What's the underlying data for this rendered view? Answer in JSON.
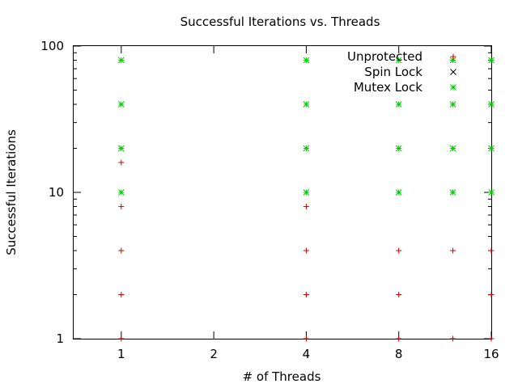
{
  "chart_data": {
    "type": "scatter",
    "title": "Successful Iterations vs. Threads",
    "xlabel": "# of Threads",
    "ylabel": "Successful Iterations",
    "x_scale": "log2",
    "y_scale": "log10",
    "xlim": [
      0.7,
      16
    ],
    "ylim": [
      1,
      100
    ],
    "x_ticks": [
      1,
      2,
      4,
      8,
      16
    ],
    "x_tick_labels": [
      "1",
      "2",
      "4",
      "8",
      "16"
    ],
    "y_ticks": [
      1,
      10,
      100
    ],
    "y_tick_labels": [
      "1",
      "10",
      "100"
    ],
    "grid": false,
    "legend_position": "top-right",
    "series": [
      {
        "name": "Unprotected",
        "marker": "plus",
        "color": "#cc0000",
        "points": [
          [
            1,
            1
          ],
          [
            1,
            2
          ],
          [
            1,
            4
          ],
          [
            1,
            8
          ],
          [
            1,
            16
          ],
          [
            4,
            1
          ],
          [
            4,
            2
          ],
          [
            4,
            4
          ],
          [
            4,
            8
          ],
          [
            8,
            1
          ],
          [
            8,
            2
          ],
          [
            8,
            4
          ],
          [
            12,
            1
          ],
          [
            12,
            4
          ],
          [
            16,
            1
          ],
          [
            16,
            2
          ],
          [
            16,
            4
          ]
        ]
      },
      {
        "name": "Spin Lock",
        "marker": "cross",
        "color": "#000000",
        "points": []
      },
      {
        "name": "Mutex Lock",
        "marker": "star",
        "color": "#00cc00",
        "points": [
          [
            1,
            10
          ],
          [
            1,
            20
          ],
          [
            1,
            40
          ],
          [
            1,
            80
          ],
          [
            4,
            10
          ],
          [
            4,
            20
          ],
          [
            4,
            40
          ],
          [
            4,
            80
          ],
          [
            8,
            10
          ],
          [
            8,
            20
          ],
          [
            8,
            40
          ],
          [
            8,
            80
          ],
          [
            12,
            10
          ],
          [
            12,
            20
          ],
          [
            12,
            40
          ],
          [
            12,
            80
          ],
          [
            16,
            10
          ],
          [
            16,
            20
          ],
          [
            16,
            40
          ],
          [
            16,
            80
          ]
        ]
      }
    ]
  }
}
